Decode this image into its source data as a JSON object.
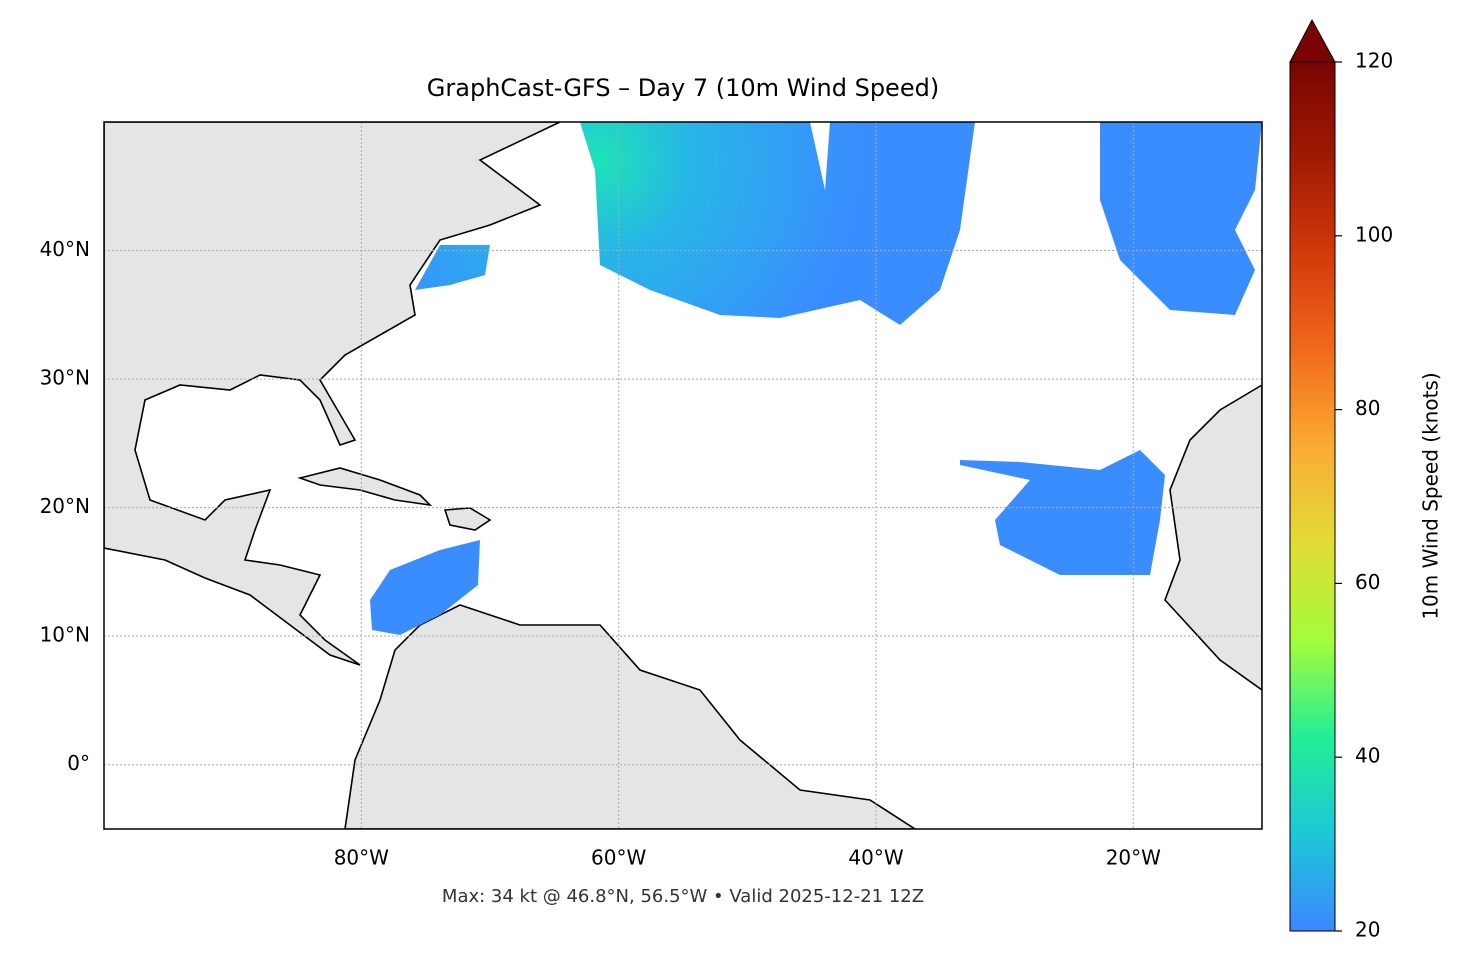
{
  "chart_data": {
    "type": "map",
    "title": "GraphCast-GFS – Day 7 (10m Wind Speed)",
    "xlim": [
      -100,
      -10
    ],
    "ylim": [
      -5,
      50
    ],
    "xticks": [
      {
        "value": -80,
        "label": "80°W"
      },
      {
        "value": -60,
        "label": "60°W"
      },
      {
        "value": -40,
        "label": "40°W"
      },
      {
        "value": -20,
        "label": "20°W"
      }
    ],
    "yticks": [
      {
        "value": 0,
        "label": "0°"
      },
      {
        "value": 10,
        "label": "10°N"
      },
      {
        "value": 20,
        "label": "20°N"
      },
      {
        "value": 30,
        "label": "30°N"
      },
      {
        "value": 40,
        "label": "40°N"
      }
    ],
    "grid": true,
    "colorbar": {
      "label": "10m Wind Speed (knots)",
      "lim": [
        20,
        120
      ],
      "ticks": [
        20,
        40,
        60,
        80,
        100,
        120
      ],
      "colors": [
        "#3c87ff",
        "#1dc7d8",
        "#22ee95",
        "#a3fc3c",
        "#e2dc38",
        "#fbac33",
        "#f26a1c",
        "#d23a0a",
        "#a01a03",
        "#7a0403"
      ]
    },
    "footer": "Max: 34 kt @ 46.8°N, 56.5°W • Valid 2025-12-21 12Z"
  }
}
